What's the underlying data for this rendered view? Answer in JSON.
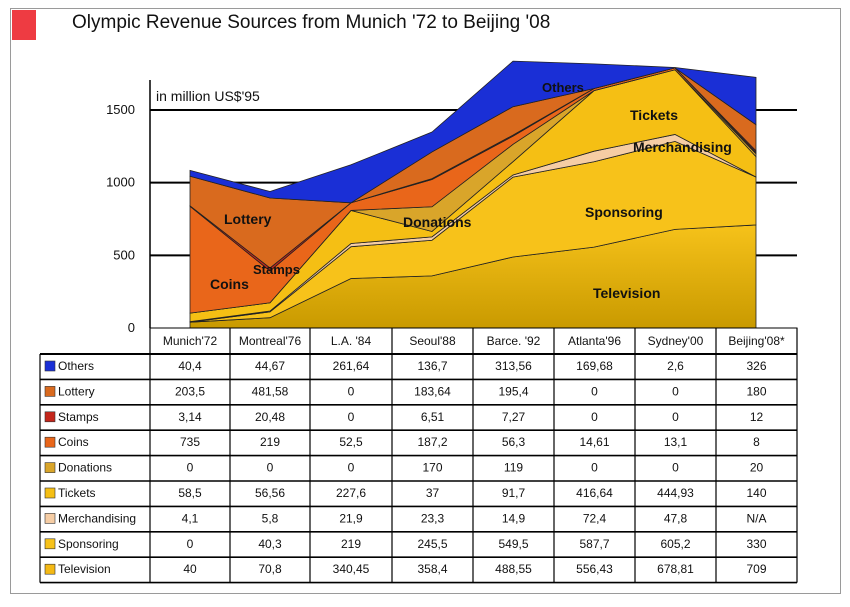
{
  "header": {
    "title": "Olympic Revenue Sources from Munich '72 to Beijing '08"
  },
  "colors": {
    "accent_square": "#ee3b42",
    "Others": "#1a2fd6",
    "Lottery": "#d96a1e",
    "Stamps": "#c4261b",
    "Coins": "#e9661a",
    "Donations": "#d9a52a",
    "Tickets": "#f5bf14",
    "Merchandising": "#f6cda4",
    "Sponsoring": "#f7c21a",
    "Television": "#f4b915"
  },
  "chart_data": {
    "type": "area",
    "stacked": true,
    "title": "Olympic Revenue Sources from Munich '72 to Beijing '08",
    "unit_label": "in million US$'95",
    "categories": [
      "Munich'72",
      "Montreal'76",
      "L.A. '84",
      "Seoul'88",
      "Barce. '92",
      "Atlanta'96",
      "Sydney'00",
      "Beijing'08*"
    ],
    "yticks": [
      "0",
      "500",
      "1000",
      "1500"
    ],
    "ylim": [
      0,
      1750
    ],
    "grid": true,
    "series": [
      {
        "name": "Television",
        "values": [
          40,
          70.8,
          340.45,
          358.4,
          488.55,
          556.43,
          678.81,
          709
        ],
        "labels": [
          "40",
          "70,8",
          "340,45",
          "358,4",
          "488,55",
          "556,43",
          "678,81",
          "709"
        ]
      },
      {
        "name": "Sponsoring",
        "values": [
          0,
          40.3,
          219,
          245.5,
          549.5,
          587.7,
          605.2,
          330
        ],
        "labels": [
          "0",
          "40,3",
          "219",
          "245,5",
          "549,5",
          "587,7",
          "605,2",
          "330"
        ]
      },
      {
        "name": "Merchandising",
        "values": [
          4.1,
          5.8,
          21.9,
          23.3,
          14.9,
          72.4,
          47.8,
          null
        ],
        "labels": [
          "4,1",
          "5,8",
          "21,9",
          "23,3",
          "14,9",
          "72,4",
          "47,8",
          "N/A"
        ]
      },
      {
        "name": "Tickets",
        "values": [
          58.5,
          56.56,
          227.6,
          37,
          91.7,
          416.64,
          444.93,
          140
        ],
        "labels": [
          "58,5",
          "56,56",
          "227,6",
          "37",
          "91,7",
          "416,64",
          "444,93",
          "140"
        ]
      },
      {
        "name": "Donations",
        "values": [
          0,
          0,
          0,
          170,
          119,
          0,
          0,
          20
        ],
        "labels": [
          "0",
          "0",
          "0",
          "170",
          "119",
          "0",
          "0",
          "20"
        ]
      },
      {
        "name": "Coins",
        "values": [
          735,
          219,
          52.5,
          187.2,
          56.3,
          14.61,
          13.1,
          8
        ],
        "labels": [
          "735",
          "219",
          "52,5",
          "187,2",
          "56,3",
          "14,61",
          "13,1",
          "8"
        ]
      },
      {
        "name": "Stamps",
        "values": [
          3.14,
          20.48,
          0,
          6.51,
          7.27,
          0,
          0,
          12
        ],
        "labels": [
          "3,14",
          "20,48",
          "0",
          "6,51",
          "7,27",
          "0",
          "0",
          "12"
        ]
      },
      {
        "name": "Lottery",
        "values": [
          203.5,
          481.58,
          0,
          183.64,
          195.4,
          0,
          0,
          180
        ],
        "labels": [
          "203,5",
          "481,58",
          "0",
          "183,64",
          "195,4",
          "0",
          "0",
          "180"
        ]
      },
      {
        "name": "Others",
        "values": [
          40.4,
          44.67,
          261.64,
          136.7,
          313.56,
          169.68,
          2.6,
          326
        ],
        "labels": [
          "40,4",
          "44,67",
          "261,64",
          "136,7",
          "313,56",
          "169,68",
          "2,6",
          "326"
        ]
      }
    ],
    "table_row_order": [
      "Others",
      "Lottery",
      "Stamps",
      "Coins",
      "Donations",
      "Tickets",
      "Merchandising",
      "Sponsoring",
      "Television"
    ],
    "annotations": [
      "Others",
      "Tickets",
      "Merchandising",
      "Lottery",
      "Donations",
      "Sponsoring",
      "Stamps",
      "Coins",
      "Television"
    ]
  }
}
